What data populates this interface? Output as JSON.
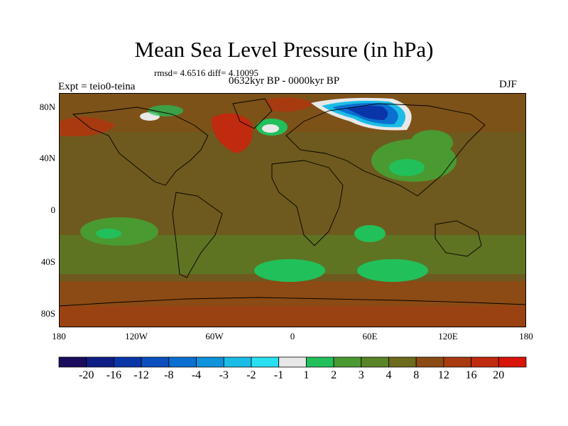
{
  "title": "Mean Sea Level Pressure (in hPa)",
  "stats": "rmsd= 4.6516  diff= 4.10095",
  "period": "0632kyr BP - 0000kyr BP",
  "experiment": "Expt = teio0-teina",
  "season": "DJF",
  "lat_ticks": [
    "80N",
    "40N",
    "0",
    "40S",
    "80S"
  ],
  "lon_ticks": [
    "180",
    "120W",
    "60W",
    "0",
    "60E",
    "120E",
    "180"
  ],
  "colorbar": {
    "labels": [
      "-20",
      "-16",
      "-12",
      "-8",
      "-4",
      "-3",
      "-2",
      "-1",
      "1",
      "2",
      "3",
      "4",
      "8",
      "12",
      "16",
      "20"
    ],
    "colors": [
      "#1a0b5c",
      "#0f1e85",
      "#0a35a8",
      "#0a4fbd",
      "#0a6fd0",
      "#0f93dc",
      "#1bbde6",
      "#29e0f0",
      "#e8e8e8",
      "#22c05a",
      "#4a9a32",
      "#5a8428",
      "#6e6a1e",
      "#8c4a14",
      "#a83a10",
      "#c02a0e",
      "#d81508"
    ]
  },
  "palette": {
    "background": "#6e5a1e",
    "polar_band": "#8c4a14",
    "green": "#4a9a32",
    "bright_green": "#22c05a",
    "red": "#c02a0e",
    "blue_dark": "#0a35a8",
    "blue_mid": "#0a6fd0",
    "cyan": "#1bbde6",
    "white": "#e8e8e8"
  }
}
